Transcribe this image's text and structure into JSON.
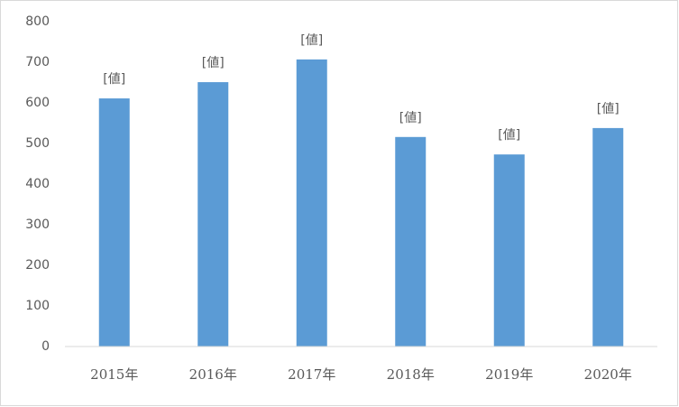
{
  "chart_data": {
    "type": "bar",
    "categories": [
      "2015年",
      "2016年",
      "2017年",
      "2018年",
      "2019年",
      "2020年"
    ],
    "values": [
      611,
      651,
      707,
      516,
      473,
      538
    ],
    "value_labels": [
      "[値]",
      "[値]",
      "[値]",
      "[値]",
      "[値]",
      "[値]"
    ],
    "color": "#5b9bd5",
    "ylim": [
      0,
      800
    ],
    "yticks": [
      0,
      100,
      200,
      300,
      400,
      500,
      600,
      700,
      800
    ],
    "grid": false
  }
}
